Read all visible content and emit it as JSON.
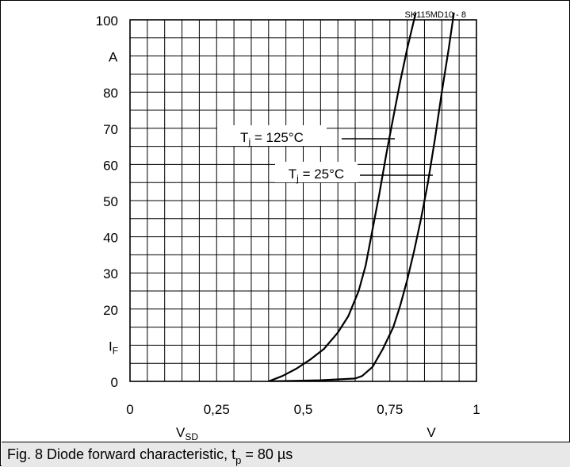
{
  "chart_data": {
    "type": "line",
    "code": "SK115MD10 - 8",
    "x_axis": {
      "range": [
        0,
        1
      ],
      "tick_values": [
        0,
        0.25,
        0.5,
        0.75,
        1
      ],
      "tick_labels": [
        "0",
        "0,25",
        "0,5",
        "0,75",
        "1"
      ],
      "label_main": "V",
      "label_sub": "SD",
      "unit": "V",
      "minor_step": 0.05
    },
    "y_axis": {
      "range": [
        0,
        100
      ],
      "tick_values": [
        0,
        10,
        20,
        30,
        40,
        50,
        60,
        70,
        80,
        100
      ],
      "tick_labels": [
        "0",
        "I_F",
        "20",
        "30",
        "40",
        "50",
        "60",
        "70",
        "80",
        "100"
      ],
      "label_main": "I",
      "label_sub": "F",
      "unit": "A",
      "minor_step": 5
    },
    "grid": true,
    "series": [
      {
        "name_main": "T",
        "name_sub": "j",
        "name_rest": " = 125°C",
        "x": [
          0.4,
          0.44,
          0.48,
          0.52,
          0.56,
          0.6,
          0.63,
          0.66,
          0.68,
          0.7,
          0.72,
          0.74,
          0.76,
          0.78,
          0.8,
          0.82,
          0.825
        ],
        "y": [
          0,
          1.5,
          3.5,
          6,
          9,
          13.5,
          18,
          25,
          32,
          42,
          52,
          63,
          73,
          83,
          92,
          100,
          102
        ]
      },
      {
        "name_main": "T",
        "name_sub": "j",
        "name_rest": " = 25°C",
        "x": [
          0.4,
          0.55,
          0.65,
          0.67,
          0.7,
          0.73,
          0.76,
          0.78,
          0.8,
          0.82,
          0.84,
          0.86,
          0.88,
          0.9,
          0.92,
          0.935
        ],
        "y": [
          0,
          0.3,
          0.8,
          1.5,
          4,
          9,
          15,
          21,
          28,
          36,
          45,
          55,
          67,
          80,
          92,
          102
        ]
      }
    ]
  },
  "caption": {
    "text_before": "Fig. 8 Diode forward characteristic, t",
    "sub": "p",
    "text_after": " = 80 µs"
  }
}
